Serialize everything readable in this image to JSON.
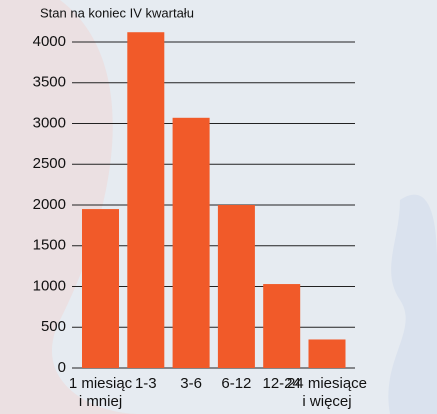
{
  "chart_data": {
    "type": "bar",
    "title": "Stan na koniec IV kwartału",
    "categories": [
      [
        "1 miesiąc",
        "i mniej"
      ],
      [
        "1-3"
      ],
      [
        "3-6"
      ],
      [
        "6-12"
      ],
      [
        "12-24"
      ],
      [
        "24 miesiące",
        "i więcej"
      ]
    ],
    "values": [
      1950,
      4120,
      3070,
      2000,
      1030,
      350
    ],
    "color": "#f15a29",
    "ylim": [
      0,
      4000
    ],
    "yticks": [
      0,
      500,
      1000,
      1500,
      2000,
      2500,
      3000,
      3500,
      4000
    ],
    "grid": true
  }
}
